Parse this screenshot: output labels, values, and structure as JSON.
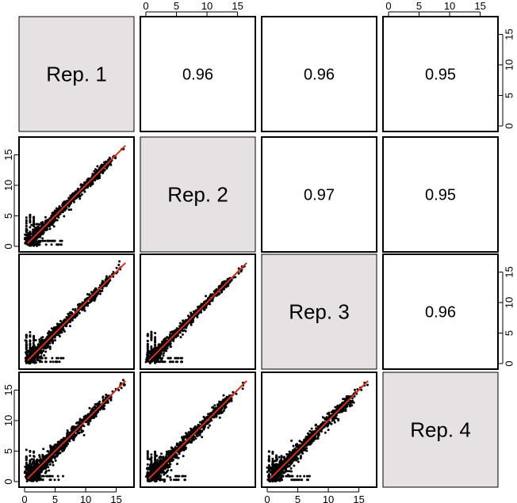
{
  "chart_data": {
    "type": "scatter-matrix",
    "replicates": [
      "Rep. 1",
      "Rep. 2",
      "Rep. 3",
      "Rep. 4"
    ],
    "axis_range": [
      0,
      17
    ],
    "tick_labels": [
      "0",
      "5",
      "10",
      "15"
    ],
    "correlations": [
      {
        "row": 1,
        "col": 2,
        "value": "0.96"
      },
      {
        "row": 1,
        "col": 3,
        "value": "0.96"
      },
      {
        "row": 1,
        "col": 4,
        "value": "0.95"
      },
      {
        "row": 2,
        "col": 3,
        "value": "0.97"
      },
      {
        "row": 2,
        "col": 4,
        "value": "0.95"
      },
      {
        "row": 3,
        "col": 4,
        "value": "0.96"
      }
    ],
    "scatter_panels": [
      {
        "row": 2,
        "col": 1,
        "x": "Rep. 1",
        "y": "Rep. 2",
        "spread": 0.9
      },
      {
        "row": 3,
        "col": 1,
        "x": "Rep. 1",
        "y": "Rep. 3",
        "spread": 0.95
      },
      {
        "row": 3,
        "col": 2,
        "x": "Rep. 2",
        "y": "Rep. 3",
        "spread": 0.8
      },
      {
        "row": 4,
        "col": 1,
        "x": "Rep. 1",
        "y": "Rep. 4",
        "spread": 1.2
      },
      {
        "row": 4,
        "col": 2,
        "x": "Rep. 2",
        "y": "Rep. 4",
        "spread": 1.25
      },
      {
        "row": 4,
        "col": 3,
        "x": "Rep. 3",
        "y": "Rep. 4",
        "spread": 1.2
      }
    ],
    "fit_line": {
      "type": "loess",
      "from": [
        0.5,
        0.5
      ],
      "to": [
        16.5,
        16.5
      ]
    },
    "colors": {
      "points": "#000000",
      "fit_line": "#d62d20",
      "diagonal_fill": "#e6e2e3",
      "frame": "#000000"
    }
  }
}
